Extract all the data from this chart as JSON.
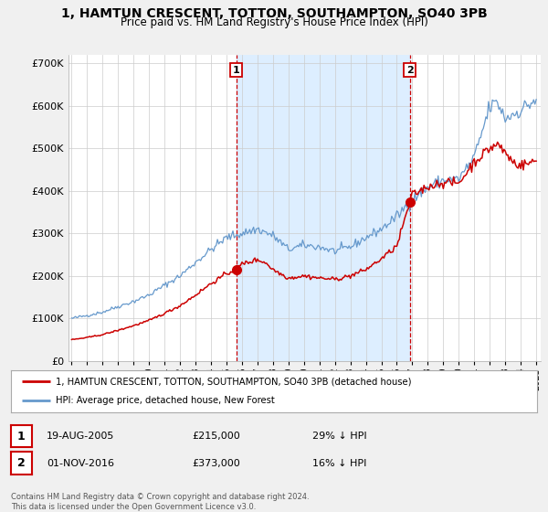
{
  "title": "1, HAMTUN CRESCENT, TOTTON, SOUTHAMPTON, SO40 3PB",
  "subtitle": "Price paid vs. HM Land Registry's House Price Index (HPI)",
  "title_fontsize": 10,
  "subtitle_fontsize": 8.5,
  "ylabel_ticks": [
    "£0",
    "£100K",
    "£200K",
    "£300K",
    "£400K",
    "£500K",
    "£600K",
    "£700K"
  ],
  "ytick_values": [
    0,
    100000,
    200000,
    300000,
    400000,
    500000,
    600000,
    700000
  ],
  "ylim": [
    0,
    720000
  ],
  "xlim_start": 1994.8,
  "xlim_end": 2025.3,
  "legend_label_red": "1, HAMTUN CRESCENT, TOTTON, SOUTHAMPTON, SO40 3PB (detached house)",
  "legend_label_blue": "HPI: Average price, detached house, New Forest",
  "sale1_x": 2005.635,
  "sale1_y": 215000,
  "sale1_label": "1",
  "sale1_date": "19-AUG-2005",
  "sale1_price": "£215,000",
  "sale1_hpi": "29% ↓ HPI",
  "sale2_x": 2016.836,
  "sale2_y": 373000,
  "sale2_label": "2",
  "sale2_date": "01-NOV-2016",
  "sale2_price": "£373,000",
  "sale2_hpi": "16% ↓ HPI",
  "footer": "Contains HM Land Registry data © Crown copyright and database right 2024.\nThis data is licensed under the Open Government Licence v3.0.",
  "bg_color": "#f0f0f0",
  "plot_bg_color": "#ffffff",
  "red_color": "#cc0000",
  "blue_color": "#6699cc",
  "shade_color": "#ddeeff",
  "grid_color": "#cccccc",
  "sale_vline_color": "#cc0000",
  "sale_dot_color": "#cc0000"
}
